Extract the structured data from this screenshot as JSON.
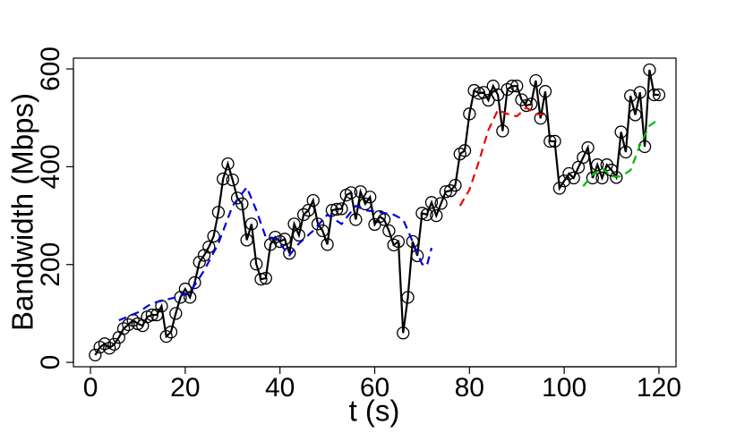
{
  "chart_data": {
    "type": "line",
    "x_label": "t (s)",
    "y_label": "Bandwidth (Mbps)",
    "xlim": [
      -3.6,
      123.6
    ],
    "ylim": [
      -9,
      622
    ],
    "xticks": [
      0,
      20,
      40,
      60,
      80,
      100,
      120
    ],
    "yticks": [
      0,
      200,
      400,
      600
    ],
    "series": [
      {
        "color": "#000000",
        "style": "solid",
        "markers": true,
        "x": [
          1,
          2,
          3,
          4,
          5,
          6,
          7,
          8,
          9,
          10,
          11,
          12,
          13,
          14,
          15,
          16,
          17,
          18,
          19,
          20,
          21,
          22,
          23,
          24,
          25,
          26,
          27,
          28,
          29,
          30,
          31,
          32,
          33,
          34,
          35,
          36,
          37,
          38,
          39,
          40,
          41,
          42,
          43,
          44,
          45,
          46,
          47,
          48,
          49,
          50,
          51,
          52,
          53,
          54,
          55,
          56,
          57,
          58,
          59,
          60,
          61,
          62,
          63,
          64,
          65,
          66,
          67,
          68,
          69,
          70,
          71,
          72,
          73,
          74,
          75,
          76,
          77,
          78,
          79,
          80,
          81,
          82,
          83,
          84,
          85,
          86,
          87,
          88,
          89,
          90,
          91,
          92,
          93,
          94,
          95,
          96,
          97,
          98,
          99,
          100,
          101,
          102,
          103,
          104,
          105,
          106,
          107,
          108,
          109,
          110,
          111,
          112,
          113,
          114,
          115,
          116,
          117,
          118,
          119,
          120
        ],
        "values": [
          15,
          31,
          38,
          29,
          37,
          51,
          69,
          77,
          86,
          79,
          75,
          93,
          97,
          97,
          115,
          53,
          62,
          100,
          133,
          150,
          133,
          163,
          205,
          219,
          236,
          258,
          307,
          375,
          406,
          373,
          336,
          324,
          250,
          283,
          201,
          170,
          172,
          241,
          256,
          247,
          252,
          223,
          283,
          260,
          302,
          311,
          331,
          283,
          269,
          241,
          311,
          313,
          314,
          342,
          347,
          292,
          349,
          324,
          338,
          282,
          298,
          292,
          269,
          240,
          247,
          60,
          133,
          247,
          218,
          305,
          302,
          327,
          300,
          325,
          349,
          351,
          362,
          426,
          433,
          508,
          556,
          550,
          552,
          536,
          565,
          547,
          473,
          558,
          565,
          565,
          537,
          525,
          528,
          576,
          499,
          554,
          452,
          452,
          356,
          371,
          386,
          377,
          399,
          419,
          439,
          377,
          404,
          377,
          404,
          393,
          378,
          471,
          430,
          545,
          506,
          552,
          441,
          598,
          547,
          547
        ]
      },
      {
        "color": "#0000dd",
        "style": "dashed",
        "markers": false,
        "x": [
          6,
          10,
          13,
          18,
          21,
          24,
          27,
          30,
          33,
          35,
          37,
          39,
          42,
          44,
          47,
          50,
          53,
          56,
          58,
          61,
          64,
          66,
          68,
          70,
          71,
          72
        ],
        "values": [
          86,
          102,
          121,
          133,
          143,
          188,
          243,
          320,
          358,
          311,
          256,
          254,
          219,
          243,
          269,
          302,
          283,
          320,
          311,
          307,
          302,
          292,
          247,
          201,
          197,
          234
        ]
      },
      {
        "color": "#ee0000",
        "style": "dashed",
        "markers": false,
        "x": [
          78,
          80,
          82,
          84,
          86,
          88,
          90,
          92,
          94,
          96
        ],
        "values": [
          320,
          353,
          411,
          475,
          516,
          508,
          503,
          521,
          508,
          506
        ]
      },
      {
        "color": "#00bb00",
        "style": "dashed",
        "markers": false,
        "x": [
          104,
          106,
          108,
          110,
          112,
          114,
          116,
          118,
          120
        ],
        "values": [
          360,
          384,
          397,
          380,
          380,
          393,
          444,
          484,
          497
        ]
      }
    ]
  }
}
